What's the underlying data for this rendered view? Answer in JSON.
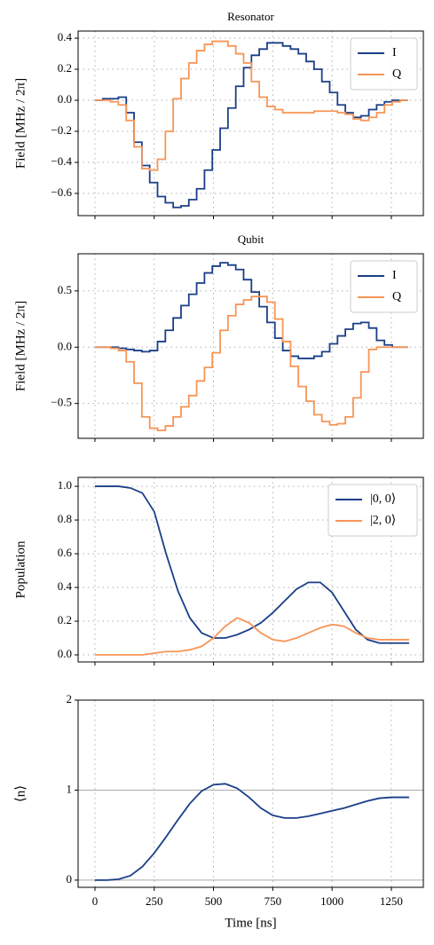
{
  "chart_data": [
    {
      "type": "line",
      "drawstyle": "steps-post",
      "title": "Resonator",
      "ylabel": "Field [MHz / 2π]",
      "x": [
        0,
        33,
        66,
        99,
        132,
        165,
        198,
        231,
        264,
        297,
        330,
        363,
        396,
        429,
        462,
        495,
        528,
        561,
        594,
        627,
        660,
        693,
        726,
        759,
        792,
        825,
        858,
        891,
        924,
        957,
        990,
        1023,
        1056,
        1089,
        1122,
        1155,
        1188,
        1221,
        1254,
        1287,
        1320
      ],
      "series": [
        {
          "name": "I",
          "color": "#1a3f87",
          "values": [
            0,
            0.01,
            0.01,
            0.02,
            -0.08,
            -0.27,
            -0.42,
            -0.53,
            -0.62,
            -0.66,
            -0.69,
            -0.68,
            -0.64,
            -0.57,
            -0.45,
            -0.32,
            -0.18,
            -0.05,
            0.09,
            0.21,
            0.29,
            0.33,
            0.37,
            0.37,
            0.35,
            0.33,
            0.3,
            0.25,
            0.2,
            0.12,
            0.05,
            -0.03,
            -0.08,
            -0.11,
            -0.1,
            -0.06,
            -0.03,
            -0.01,
            0,
            0,
            0
          ]
        },
        {
          "name": "Q",
          "color": "#f79556",
          "values": [
            0,
            0,
            -0.01,
            -0.03,
            -0.13,
            -0.3,
            -0.44,
            -0.45,
            -0.38,
            -0.2,
            0.01,
            0.14,
            0.24,
            0.32,
            0.36,
            0.38,
            0.38,
            0.35,
            0.3,
            0.24,
            0.12,
            0.02,
            -0.04,
            -0.06,
            -0.08,
            -0.08,
            -0.08,
            -0.08,
            -0.07,
            -0.07,
            -0.07,
            -0.08,
            -0.09,
            -0.12,
            -0.13,
            -0.11,
            -0.08,
            -0.03,
            -0.01,
            0,
            0
          ]
        }
      ],
      "xlim": [
        -71,
        1385
      ],
      "xticks": [
        0,
        250,
        500,
        750,
        1000,
        1250
      ],
      "xticklabels": false,
      "ylim": [
        -0.743,
        0.446
      ],
      "yticks": [
        {
          "value": -0.6,
          "label": "−0.6"
        },
        {
          "value": -0.4,
          "label": "−0.4"
        },
        {
          "value": -0.2,
          "label": "−0.2"
        },
        {
          "value": 0,
          "label": "0.0"
        },
        0.2,
        0.4
      ],
      "grid": "both",
      "legend": "upper right"
    },
    {
      "type": "line",
      "drawstyle": "steps-post",
      "title": "Qubit",
      "ylabel": "Field [MHz / 2π]",
      "x": [
        0,
        33,
        66,
        99,
        132,
        165,
        198,
        231,
        264,
        297,
        330,
        363,
        396,
        429,
        462,
        495,
        528,
        561,
        594,
        627,
        660,
        693,
        726,
        759,
        792,
        825,
        858,
        891,
        924,
        957,
        990,
        1023,
        1056,
        1089,
        1122,
        1155,
        1188,
        1221,
        1254,
        1287,
        1320
      ],
      "series": [
        {
          "name": "I",
          "color": "#1a3f87",
          "values": [
            0,
            0,
            0,
            -0.01,
            -0.02,
            -0.03,
            -0.04,
            -0.03,
            0.05,
            0.15,
            0.26,
            0.37,
            0.47,
            0.57,
            0.66,
            0.72,
            0.75,
            0.73,
            0.69,
            0.6,
            0.49,
            0.36,
            0.22,
            0.08,
            -0.03,
            -0.08,
            -0.1,
            -0.1,
            -0.08,
            -0.04,
            0.03,
            0.1,
            0.16,
            0.21,
            0.22,
            0.17,
            0.06,
            0.02,
            0,
            0,
            0
          ]
        },
        {
          "name": "Q",
          "color": "#f79556",
          "values": [
            0,
            0,
            -0.01,
            -0.03,
            -0.13,
            -0.32,
            -0.62,
            -0.72,
            -0.74,
            -0.7,
            -0.62,
            -0.53,
            -0.43,
            -0.3,
            -0.18,
            -0.05,
            0.15,
            0.28,
            0.38,
            0.42,
            0.45,
            0.45,
            0.4,
            0.25,
            0.05,
            -0.17,
            -0.35,
            -0.48,
            -0.6,
            -0.66,
            -0.69,
            -0.68,
            -0.62,
            -0.45,
            -0.22,
            -0.02,
            0,
            0,
            0,
            0,
            0
          ]
        }
      ],
      "xlim": [
        -71,
        1385
      ],
      "xticks": [
        0,
        250,
        500,
        750,
        1000,
        1250
      ],
      "xticklabels": false,
      "ylim": [
        -0.81,
        0.83
      ],
      "yticks": [
        {
          "value": -0.5,
          "label": "−0.5"
        },
        {
          "value": 0,
          "label": "0.0"
        },
        0.5
      ],
      "grid": "both",
      "legend": "upper right"
    },
    {
      "type": "line",
      "ylabel": "Population",
      "x": [
        0,
        50,
        100,
        150,
        200,
        250,
        300,
        350,
        400,
        450,
        500,
        550,
        600,
        650,
        700,
        750,
        800,
        850,
        900,
        950,
        1000,
        1050,
        1100,
        1150,
        1200,
        1250,
        1300,
        1325
      ],
      "series": [
        {
          "name": "|0, 0⟩",
          "color": "#1a3f87",
          "values": [
            1,
            1,
            1,
            0.99,
            0.96,
            0.85,
            0.6,
            0.38,
            0.22,
            0.13,
            0.1,
            0.1,
            0.12,
            0.15,
            0.19,
            0.25,
            0.32,
            0.39,
            0.43,
            0.43,
            0.37,
            0.26,
            0.15,
            0.09,
            0.07,
            0.07,
            0.07,
            0.07
          ]
        },
        {
          "name": "|2, 0⟩",
          "color": "#f79556",
          "values": [
            0,
            0,
            0,
            0,
            0,
            0.01,
            0.02,
            0.02,
            0.03,
            0.05,
            0.1,
            0.17,
            0.22,
            0.19,
            0.13,
            0.09,
            0.08,
            0.1,
            0.13,
            0.16,
            0.18,
            0.17,
            0.13,
            0.1,
            0.09,
            0.09,
            0.09,
            0.09
          ]
        }
      ],
      "xlim": [
        -71,
        1385
      ],
      "xticks": [
        0,
        250,
        500,
        750,
        1000,
        1250
      ],
      "xticklabels": false,
      "ylim": [
        -0.042,
        1.053
      ],
      "yticks": [
        {
          "value": 0,
          "label": "0.0"
        },
        0.2,
        0.4,
        0.6,
        0.8,
        {
          "value": 1,
          "label": "1.0"
        }
      ],
      "grid": "both",
      "legend": "upper right"
    },
    {
      "type": "line",
      "ylabel": "⟨n⟩",
      "xlabel": "Time [ns]",
      "x": [
        0,
        50,
        100,
        150,
        200,
        250,
        300,
        350,
        400,
        450,
        500,
        550,
        600,
        650,
        700,
        750,
        800,
        850,
        900,
        950,
        1000,
        1050,
        1100,
        1150,
        1200,
        1250,
        1300,
        1325
      ],
      "series": [
        {
          "color": "#1a3f87",
          "values": [
            0,
            0,
            0.01,
            0.05,
            0.15,
            0.3,
            0.48,
            0.67,
            0.85,
            0.99,
            1.06,
            1.07,
            1.02,
            0.92,
            0.8,
            0.72,
            0.69,
            0.69,
            0.71,
            0.74,
            0.77,
            0.8,
            0.84,
            0.88,
            0.91,
            0.92,
            0.92,
            0.92
          ]
        }
      ],
      "xlim": [
        -71,
        1385
      ],
      "xticks": [
        0,
        250,
        500,
        750,
        1000,
        1250
      ],
      "xticklabels": true,
      "ylim": [
        -0.08,
        2
      ],
      "yticks": [
        0,
        1,
        2
      ],
      "hlines": [
        0,
        1
      ],
      "grid": "x"
    }
  ]
}
